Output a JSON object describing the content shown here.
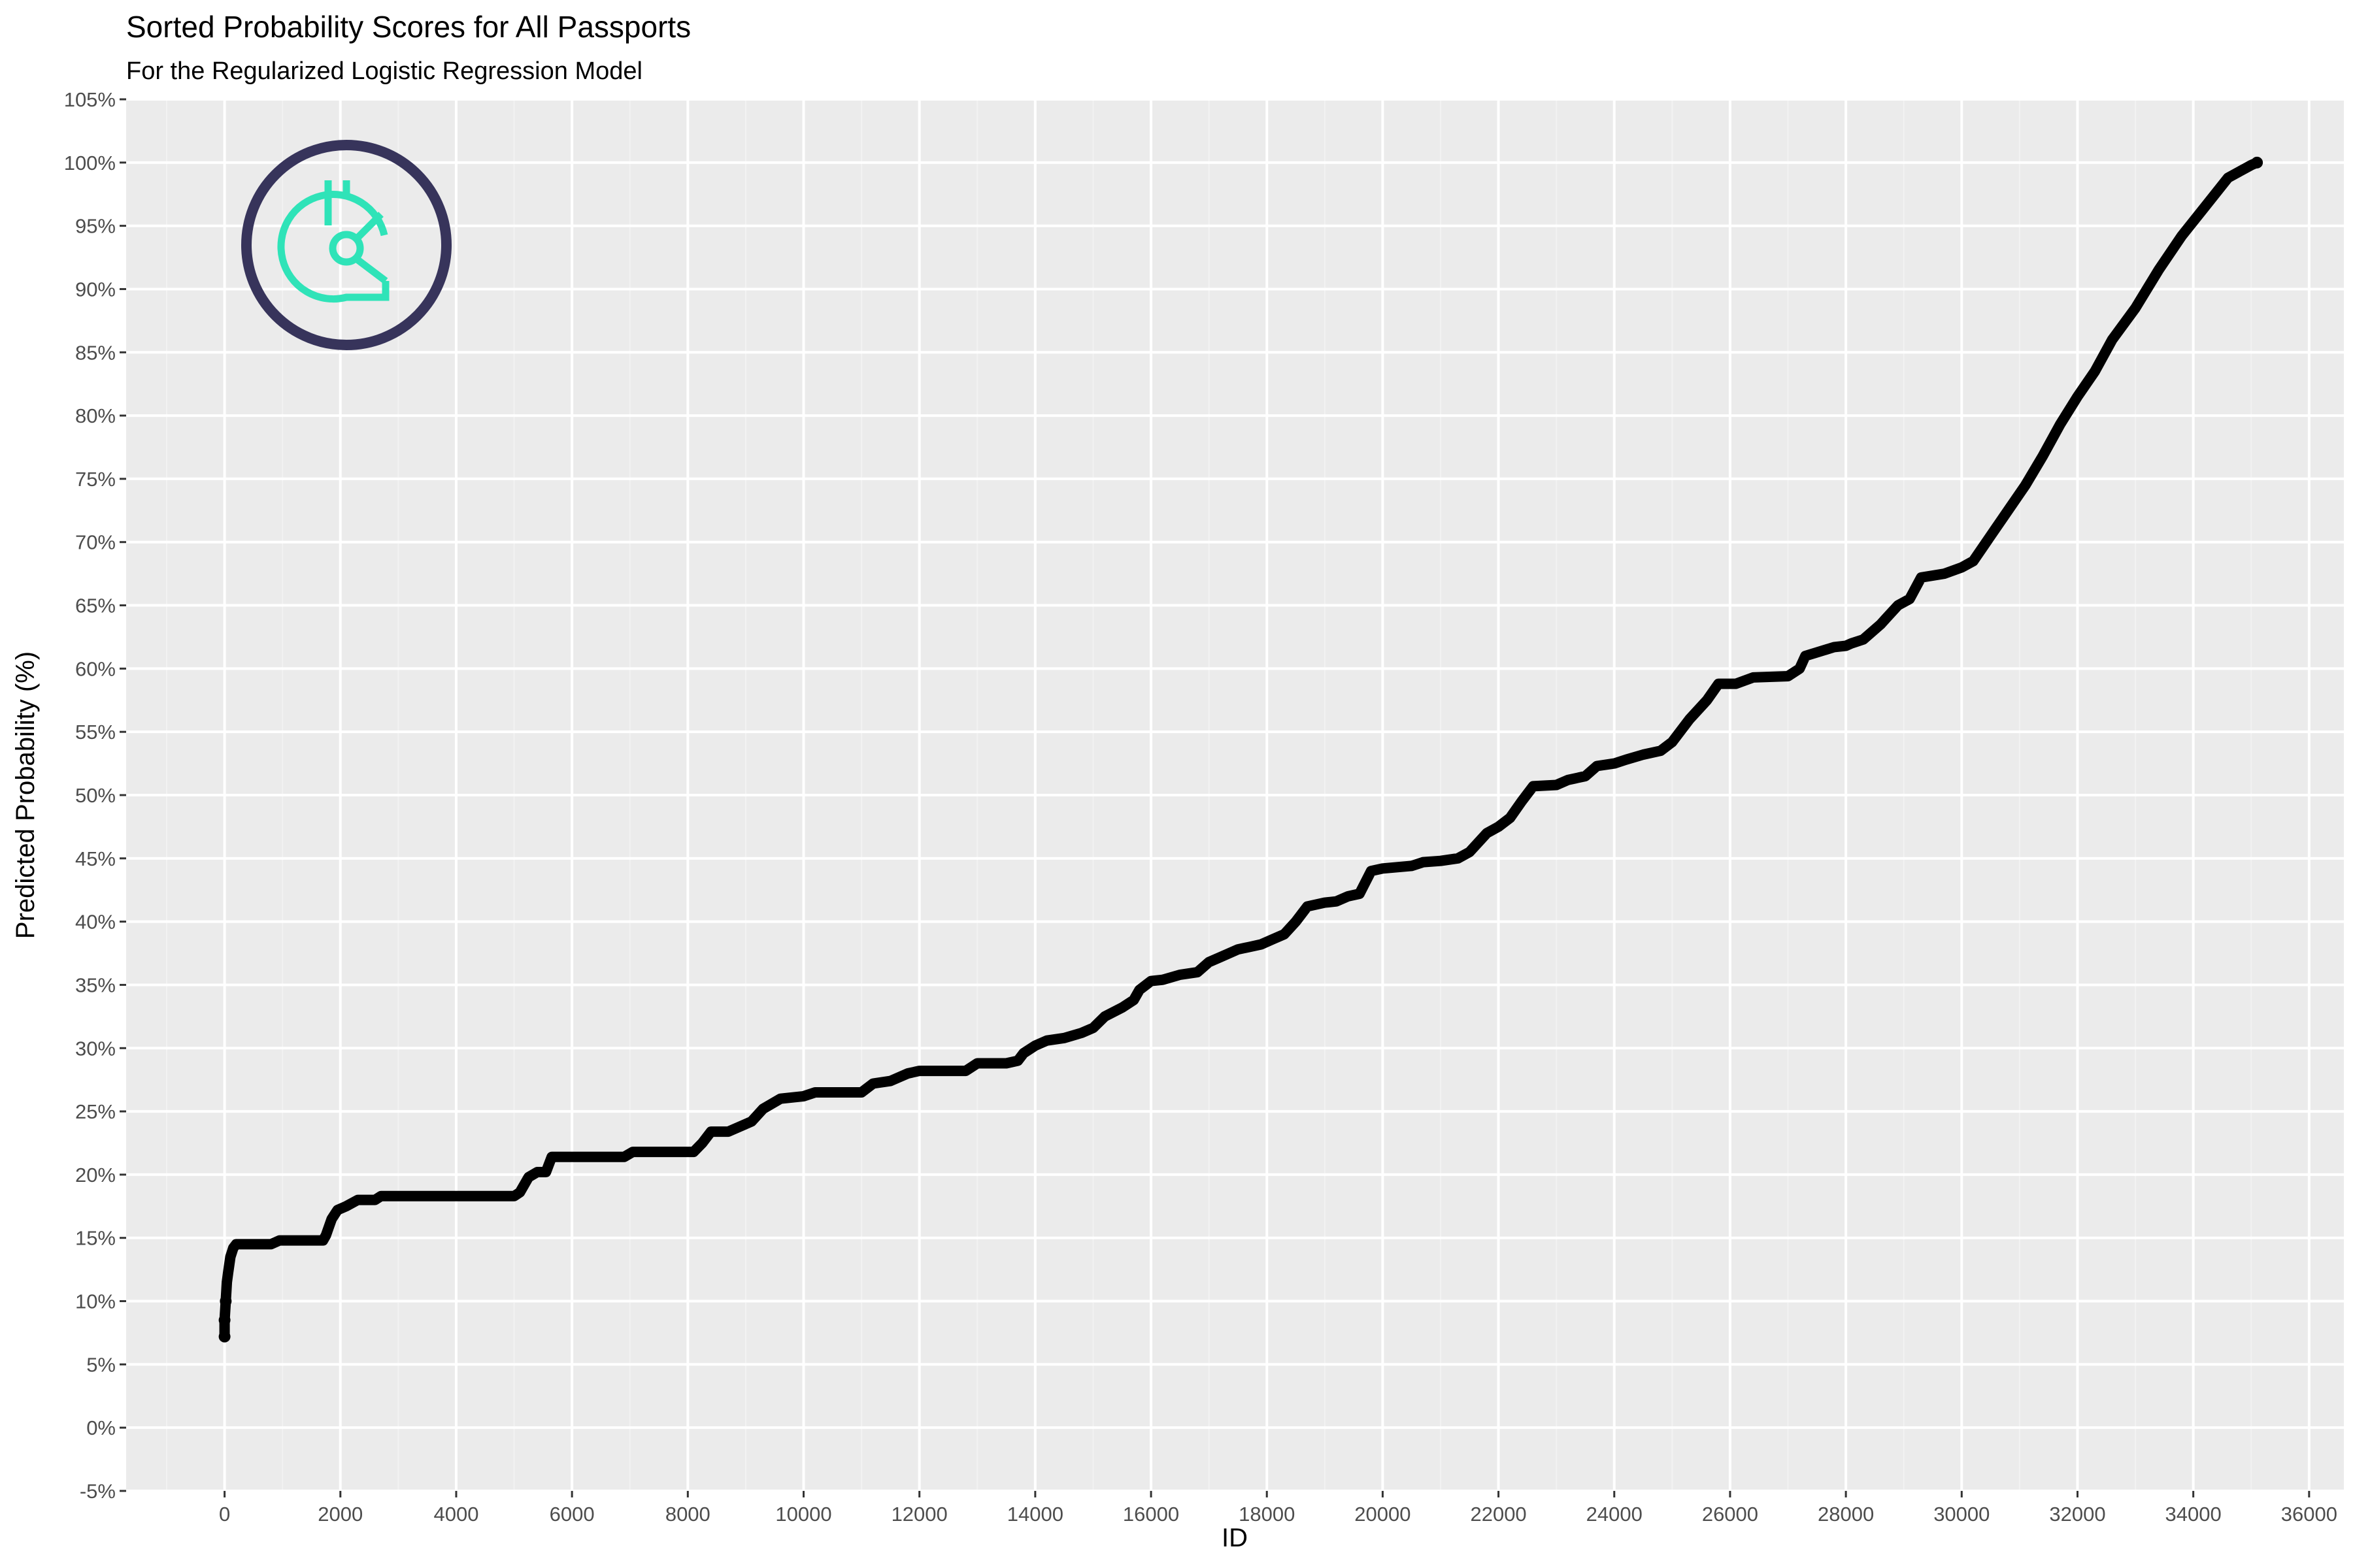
{
  "chart_data": {
    "type": "line",
    "title": "Sorted Probability Scores for All Passports",
    "subtitle": "For the Regularized Logistic Regression Model",
    "xlabel": "ID",
    "ylabel": "Predicted Probability (%)",
    "xlim": [
      -1700,
      36600
    ],
    "ylim": [
      -5,
      105
    ],
    "x_ticks": [
      0,
      2000,
      4000,
      6000,
      8000,
      10000,
      12000,
      14000,
      16000,
      18000,
      20000,
      22000,
      24000,
      26000,
      28000,
      30000,
      32000,
      34000,
      36000
    ],
    "x_tick_labels": [
      "0",
      "2000",
      "4000",
      "6000",
      "8000",
      "10000",
      "12000",
      "14000",
      "16000",
      "18000",
      "20000",
      "22000",
      "24000",
      "26000",
      "28000",
      "30000",
      "32000",
      "34000",
      "36000"
    ],
    "y_ticks": [
      -5,
      0,
      5,
      10,
      15,
      20,
      25,
      30,
      35,
      40,
      45,
      50,
      55,
      60,
      65,
      70,
      75,
      80,
      85,
      90,
      95,
      100,
      105
    ],
    "y_tick_labels": [
      "-5%",
      "0%",
      "5%",
      "10%",
      "15%",
      "20%",
      "25%",
      "30%",
      "35%",
      "40%",
      "45%",
      "50%",
      "55%",
      "60%",
      "65%",
      "70%",
      "75%",
      "80%",
      "85%",
      "90%",
      "95%",
      "100%",
      "105%"
    ],
    "grid": true,
    "series": [
      {
        "color": "#000000",
        "x": [
          0,
          0,
          20,
          40,
          60,
          100,
          150,
          200,
          300,
          800,
          950,
          1700,
          1750,
          1850,
          1950,
          2100,
          2300,
          2600,
          2700,
          3000,
          5000,
          5100,
          5250,
          5400,
          5550,
          5650,
          6000,
          6900,
          7050,
          7500,
          8100,
          8250,
          8400,
          8700,
          8900,
          9100,
          9300,
          9600,
          10000,
          10200,
          11000,
          11200,
          11500,
          11800,
          12000,
          12800,
          13000,
          13500,
          13700,
          13800,
          14000,
          14200,
          14500,
          14800,
          15000,
          15200,
          15500,
          15700,
          15800,
          16000,
          16200,
          16500,
          16800,
          17000,
          17200,
          17500,
          17700,
          17900,
          18100,
          18300,
          18500,
          18700,
          19000,
          19200,
          19400,
          19600,
          19800,
          20000,
          20500,
          20700,
          21000,
          21300,
          21500,
          21800,
          22000,
          22200,
          22400,
          22600,
          23000,
          23200,
          23500,
          23700,
          24000,
          24200,
          24500,
          24800,
          25000,
          25300,
          25600,
          25800,
          26100,
          26400,
          27000,
          27200,
          27300,
          27800,
          28000,
          28100,
          28300,
          28600,
          28700,
          28900,
          29100,
          29300,
          29700,
          30000,
          30200,
          30500,
          30800,
          31100,
          31400,
          31700,
          32000,
          32300,
          32600,
          33000,
          33400,
          33800,
          34200,
          34600,
          35000,
          35100
        ],
        "values": [
          7.2,
          8.5,
          10.0,
          11.5,
          12.2,
          13.5,
          14.2,
          14.5,
          14.5,
          14.5,
          14.8,
          14.8,
          15.2,
          16.5,
          17.2,
          17.5,
          18.0,
          18.0,
          18.3,
          18.3,
          18.3,
          18.6,
          19.8,
          20.2,
          20.2,
          21.4,
          21.4,
          21.4,
          21.8,
          21.8,
          21.8,
          22.5,
          23.4,
          23.4,
          23.8,
          24.2,
          25.2,
          26.0,
          26.2,
          26.5,
          26.5,
          27.2,
          27.4,
          28.0,
          28.2,
          28.2,
          28.8,
          28.8,
          29.0,
          29.6,
          30.2,
          30.6,
          30.8,
          31.2,
          31.6,
          32.5,
          33.2,
          33.8,
          34.6,
          35.3,
          35.4,
          35.8,
          36.0,
          36.8,
          37.2,
          37.8,
          38.0,
          38.2,
          38.6,
          39.0,
          40.0,
          41.2,
          41.5,
          41.6,
          42.0,
          42.2,
          44.0,
          44.2,
          44.4,
          44.7,
          44.8,
          45.0,
          45.5,
          47.0,
          47.5,
          48.2,
          49.5,
          50.7,
          50.8,
          51.2,
          51.5,
          52.3,
          52.5,
          52.8,
          53.2,
          53.5,
          54.2,
          56.0,
          57.5,
          58.8,
          58.8,
          59.3,
          59.4,
          60.0,
          61.0,
          61.7,
          61.8,
          62.0,
          62.3,
          63.5,
          64.0,
          65.0,
          65.5,
          67.2,
          67.5,
          68.0,
          68.5,
          70.5,
          72.5,
          74.5,
          76.8,
          79.3,
          81.5,
          83.5,
          86.0,
          88.5,
          91.5,
          94.2,
          96.5,
          98.8,
          99.8,
          100.0
        ]
      }
    ]
  },
  "logo": {
    "ring_color": "#37345b",
    "mark_color": "#2fe3b8",
    "icon": "gitcoin-logo"
  },
  "colors": {
    "panel": "#ebebeb",
    "grid_major": "#ffffff",
    "grid_minor": "#f2f2f2"
  }
}
